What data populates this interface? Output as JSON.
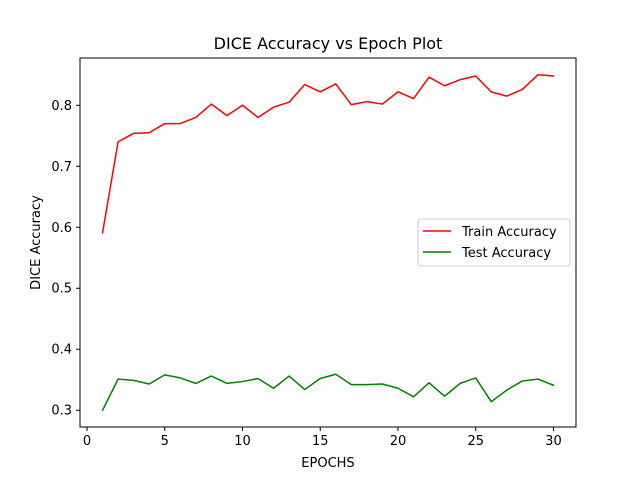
{
  "chart_data": {
    "type": "line",
    "title": "DICE Accuracy vs Epoch Plot",
    "xlabel": "EPOCHS",
    "ylabel": "DICE Accuracy",
    "xlim": [
      -0.45,
      31.45
    ],
    "ylim": [
      0.2725,
      0.8775
    ],
    "xticks": [
      0,
      5,
      10,
      15,
      20,
      25,
      30
    ],
    "yticks": [
      0.3,
      0.4,
      0.5,
      0.6,
      0.7,
      0.8
    ],
    "ytick_labels": [
      "0.3",
      "0.4",
      "0.5",
      "0.6",
      "0.7",
      "0.8"
    ],
    "grid": false,
    "legend_position": "center-right",
    "x": [
      1,
      2,
      3,
      4,
      5,
      6,
      7,
      8,
      9,
      10,
      11,
      12,
      13,
      14,
      15,
      16,
      17,
      18,
      19,
      20,
      21,
      22,
      23,
      24,
      25,
      26,
      27,
      28,
      29,
      30
    ],
    "series": [
      {
        "name": "Train Accuracy",
        "color": "#ff0000",
        "values": [
          0.591,
          0.74,
          0.754,
          0.755,
          0.77,
          0.77,
          0.78,
          0.802,
          0.783,
          0.8,
          0.78,
          0.797,
          0.805,
          0.834,
          0.822,
          0.835,
          0.801,
          0.806,
          0.802,
          0.822,
          0.811,
          0.846,
          0.832,
          0.842,
          0.848,
          0.822,
          0.815,
          0.826,
          0.85,
          0.848
        ]
      },
      {
        "name": "Test Accuracy",
        "color": "#008000",
        "values": [
          0.3,
          0.351,
          0.349,
          0.343,
          0.358,
          0.353,
          0.344,
          0.356,
          0.344,
          0.347,
          0.352,
          0.336,
          0.356,
          0.334,
          0.352,
          0.359,
          0.342,
          0.342,
          0.343,
          0.336,
          0.322,
          0.345,
          0.323,
          0.344,
          0.353,
          0.314,
          0.333,
          0.348,
          0.351,
          0.341
        ]
      }
    ]
  }
}
